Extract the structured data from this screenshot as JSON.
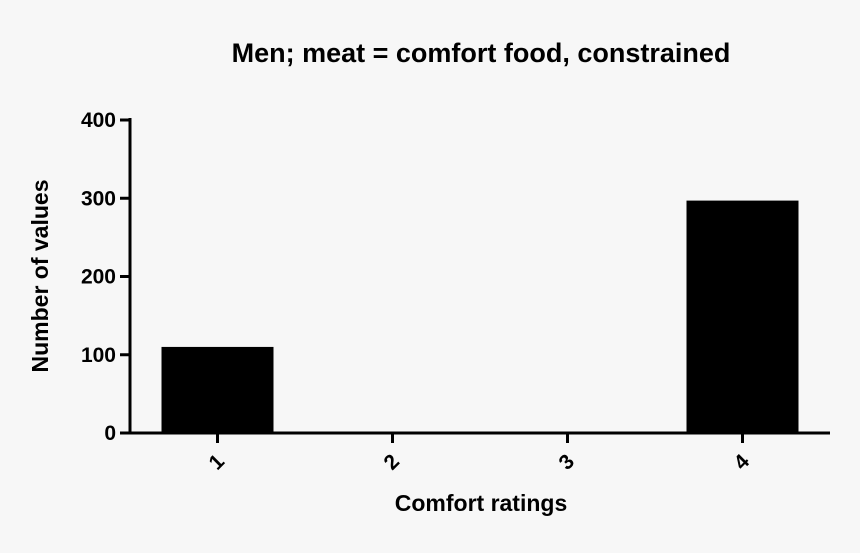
{
  "chart_data": {
    "type": "bar",
    "title": "Men; meat = comfort food, constrained",
    "xlabel": "Comfort ratings",
    "ylabel": "Number of values",
    "categories": [
      "1",
      "2",
      "3",
      "4"
    ],
    "values": [
      110,
      0,
      0,
      297
    ],
    "ylim": [
      0,
      400
    ],
    "yticks": [
      "0",
      "100",
      "200",
      "300",
      "400"
    ],
    "grid": false,
    "bar_color": "#000000",
    "background": "#f7f7f7"
  }
}
